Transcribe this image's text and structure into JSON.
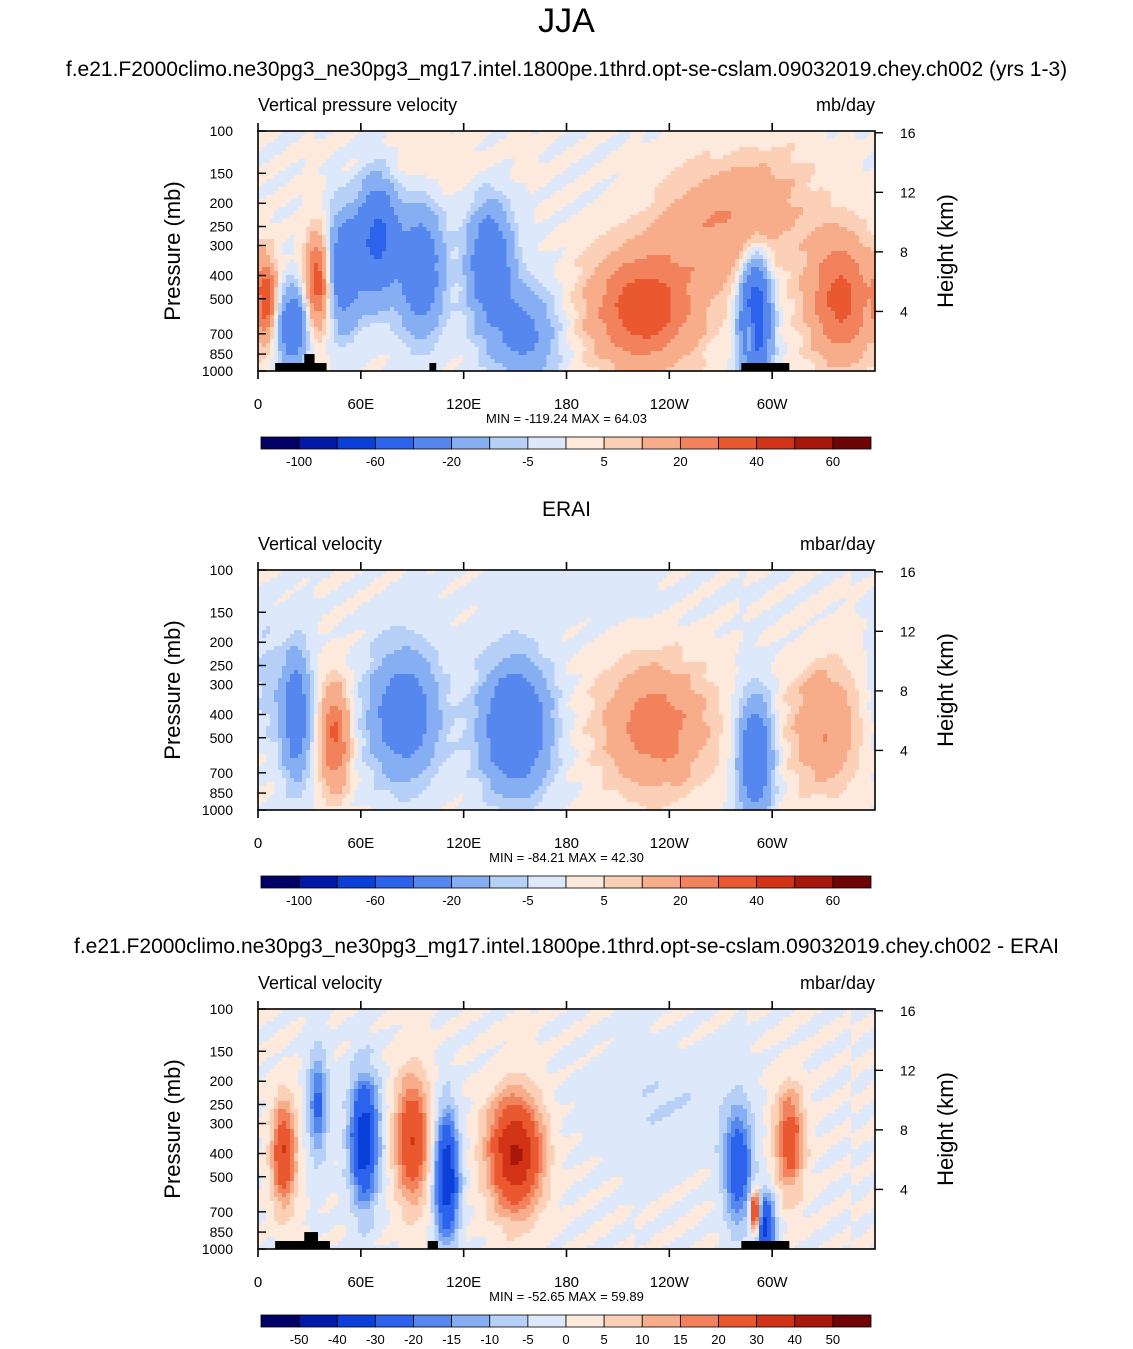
{
  "figure": {
    "title": "JJA",
    "colors": {
      "model_levels": [
        "#000066",
        "#0019a6",
        "#0b3fd9",
        "#2c63ec",
        "#5587ee",
        "#86aef3",
        "#b6d0f7",
        "#dde9fb",
        "#feeadd",
        "#fcd0b6",
        "#f8ad8a",
        "#f2825b",
        "#ea5830",
        "#d23316",
        "#a8170c",
        "#6d0507"
      ],
      "diff_levels": [
        "#000066",
        "#0019a6",
        "#0b3fd9",
        "#2c63ec",
        "#5587ee",
        "#86aef3",
        "#b6d0f7",
        "#dde9fb",
        "#feeadd",
        "#fcd0b6",
        "#f8ad8a",
        "#f2825b",
        "#ea5830",
        "#d23316",
        "#a8170c",
        "#6d0507"
      ],
      "land": "#000000"
    }
  },
  "chart_data": [
    {
      "type": "heatmap",
      "panel_title": "f.e21.F2000climo.ne30pg3_ne30pg3_mg17.intel.1800pe.1thrd.opt-se-cslam.09032019.chey.ch002 (yrs 1-3)",
      "left_label": "Vertical pressure velocity",
      "units": "mb/day",
      "ylabel": "Pressure (mb)",
      "ylabel_right": "Height (km)",
      "xticks": [
        "0",
        "60E",
        "120E",
        "180",
        "120W",
        "60W"
      ],
      "xtick_values": [
        0,
        60,
        120,
        180,
        240,
        300
      ],
      "xlim": [
        0,
        360
      ],
      "yticks": [
        "100",
        "150",
        "200",
        "250",
        "300",
        "400",
        "500",
        "700",
        "850",
        "1000"
      ],
      "ytick_values": [
        100,
        150,
        200,
        250,
        300,
        400,
        500,
        700,
        850,
        1000
      ],
      "ylim": [
        1000,
        100
      ],
      "height_ticks": [
        "16",
        "12",
        "8",
        "4"
      ],
      "height_values": [
        16,
        12,
        8,
        4
      ],
      "stats": "MIN = -119.24  MAX =  64.03",
      "colorbar_labels": [
        "-100",
        "-60",
        "-20",
        "-5",
        "5",
        "20",
        "40",
        "60"
      ],
      "colorbar_levels": [
        -120,
        -100,
        -80,
        -60,
        -40,
        -20,
        -10,
        -5,
        0,
        5,
        10,
        20,
        30,
        40,
        50,
        60,
        70
      ],
      "features": [
        {
          "lon": 50,
          "p": 380,
          "value": -34,
          "w": 7,
          "h": 0.55
        },
        {
          "lon": 20,
          "p": 650,
          "value": -38,
          "w": 6,
          "h": 0.35
        },
        {
          "lon": 35,
          "p": 420,
          "value": 38,
          "w": 5,
          "h": 0.45
        },
        {
          "lon": 5,
          "p": 500,
          "value": 32,
          "w": 4,
          "h": 0.35
        },
        {
          "lon": 70,
          "p": 280,
          "value": -46,
          "w": 8,
          "h": 0.55
        },
        {
          "lon": 95,
          "p": 380,
          "value": -34,
          "w": 9,
          "h": 0.6
        },
        {
          "lon": 135,
          "p": 350,
          "value": -36,
          "w": 9,
          "h": 0.55
        },
        {
          "lon": 155,
          "p": 700,
          "value": -24,
          "w": 14,
          "h": 0.45
        },
        {
          "lon": 225,
          "p": 550,
          "value": 38,
          "w": 22,
          "h": 0.55
        },
        {
          "lon": 270,
          "p": 250,
          "value": 18,
          "w": 25,
          "h": 0.55
        },
        {
          "lon": 290,
          "p": 600,
          "value": -62,
          "w": 6,
          "h": 0.55
        },
        {
          "lon": 287,
          "p": 700,
          "value": 35,
          "w": 2,
          "h": 0.2
        },
        {
          "lon": 340,
          "p": 500,
          "value": 34,
          "w": 14,
          "h": 0.6
        },
        {
          "lon": 300,
          "p": 180,
          "value": 8,
          "w": 20,
          "h": 0.5
        },
        {
          "lon": 100,
          "p": 140,
          "value": 4,
          "w": 30,
          "h": 0.3
        }
      ],
      "land_segments": [
        [
          10,
          40
        ],
        [
          100,
          104
        ],
        [
          282,
          310
        ]
      ],
      "land_peaks": [
        [
          27,
          33,
          850
        ]
      ]
    },
    {
      "type": "heatmap",
      "panel_title": "ERAI",
      "left_label": "Vertical velocity",
      "units": "mbar/day",
      "ylabel": "Pressure (mb)",
      "ylabel_right": "Height (km)",
      "xticks": [
        "0",
        "60E",
        "120E",
        "180",
        "120W",
        "60W"
      ],
      "xtick_values": [
        0,
        60,
        120,
        180,
        240,
        300
      ],
      "xlim": [
        0,
        360
      ],
      "yticks": [
        "100",
        "150",
        "200",
        "250",
        "300",
        "400",
        "500",
        "700",
        "850",
        "1000"
      ],
      "ytick_values": [
        100,
        150,
        200,
        250,
        300,
        400,
        500,
        700,
        850,
        1000
      ],
      "ylim": [
        1000,
        100
      ],
      "height_ticks": [
        "16",
        "12",
        "8",
        "4"
      ],
      "height_values": [
        16,
        12,
        8,
        4
      ],
      "stats": "MIN = -84.21  MAX =  42.30",
      "colorbar_labels": [
        "-100",
        "-60",
        "-20",
        "-5",
        "5",
        "20",
        "40",
        "60"
      ],
      "colorbar_levels": [
        -120,
        -100,
        -80,
        -60,
        -40,
        -20,
        -10,
        -5,
        0,
        5,
        10,
        20,
        30,
        40,
        50,
        60,
        70
      ],
      "features": [
        {
          "lon": 22,
          "p": 400,
          "value": -32,
          "w": 6,
          "h": 0.6
        },
        {
          "lon": 45,
          "p": 500,
          "value": 32,
          "w": 6,
          "h": 0.5
        },
        {
          "lon": 85,
          "p": 400,
          "value": -32,
          "w": 14,
          "h": 0.6
        },
        {
          "lon": 150,
          "p": 450,
          "value": -40,
          "w": 14,
          "h": 0.6
        },
        {
          "lon": 232,
          "p": 450,
          "value": 26,
          "w": 22,
          "h": 0.6
        },
        {
          "lon": 290,
          "p": 600,
          "value": -38,
          "w": 7,
          "h": 0.55
        },
        {
          "lon": 330,
          "p": 450,
          "value": 20,
          "w": 14,
          "h": 0.6
        },
        {
          "lon": 5,
          "p": 300,
          "value": -8,
          "w": 6,
          "h": 0.6
        },
        {
          "lon": 180,
          "p": 130,
          "value": -3,
          "w": 40,
          "h": 0.3
        }
      ],
      "land_segments": [],
      "land_peaks": []
    },
    {
      "type": "heatmap",
      "panel_title": "f.e21.F2000climo.ne30pg3_ne30pg3_mg17.intel.1800pe.1thrd.opt-se-cslam.09032019.chey.ch002 - ERAI",
      "left_label": "Vertical velocity",
      "units": "mbar/day",
      "ylabel": "Pressure (mb)",
      "ylabel_right": "Height (km)",
      "xticks": [
        "0",
        "60E",
        "120E",
        "180",
        "120W",
        "60W"
      ],
      "xtick_values": [
        0,
        60,
        120,
        180,
        240,
        300
      ],
      "xlim": [
        0,
        360
      ],
      "yticks": [
        "100",
        "150",
        "200",
        "250",
        "300",
        "400",
        "500",
        "700",
        "850",
        "1000"
      ],
      "ytick_values": [
        100,
        150,
        200,
        250,
        300,
        400,
        500,
        700,
        850,
        1000
      ],
      "ylim": [
        1000,
        100
      ],
      "height_ticks": [
        "16",
        "12",
        "8",
        "4"
      ],
      "height_values": [
        16,
        12,
        8,
        4
      ],
      "stats": "MIN = -52.65  MAX =  59.89",
      "colorbar_labels": [
        "-50",
        "-40",
        "-30",
        "-20",
        "-15",
        "-10",
        "-5",
        "0",
        "5",
        "10",
        "15",
        "20",
        "30",
        "40",
        "50"
      ],
      "colorbar_levels": [
        -60,
        -50,
        -40,
        -30,
        -20,
        -15,
        -10,
        -5,
        0,
        5,
        10,
        15,
        20,
        30,
        40,
        50,
        60
      ],
      "features": [
        {
          "lon": 15,
          "p": 400,
          "value": 30,
          "w": 5,
          "h": 0.5
        },
        {
          "lon": 35,
          "p": 250,
          "value": -22,
          "w": 4,
          "h": 0.5
        },
        {
          "lon": 62,
          "p": 350,
          "value": -38,
          "w": 6,
          "h": 0.6
        },
        {
          "lon": 90,
          "p": 350,
          "value": 30,
          "w": 7,
          "h": 0.6
        },
        {
          "lon": 110,
          "p": 500,
          "value": -40,
          "w": 5,
          "h": 0.6
        },
        {
          "lon": 150,
          "p": 400,
          "value": 42,
          "w": 11,
          "h": 0.55
        },
        {
          "lon": 280,
          "p": 450,
          "value": -28,
          "w": 6,
          "h": 0.55
        },
        {
          "lon": 310,
          "p": 350,
          "value": 26,
          "w": 6,
          "h": 0.5
        },
        {
          "lon": 296,
          "p": 800,
          "value": -34,
          "w": 4,
          "h": 0.3
        },
        {
          "lon": 290,
          "p": 700,
          "value": 45,
          "w": 2,
          "h": 0.2
        },
        {
          "lon": 230,
          "p": 250,
          "value": -5,
          "w": 30,
          "h": 0.5
        }
      ],
      "land_segments": [
        [
          10,
          42
        ],
        [
          99,
          105
        ],
        [
          282,
          310
        ]
      ],
      "land_peaks": [
        [
          27,
          35,
          850
        ]
      ]
    }
  ]
}
